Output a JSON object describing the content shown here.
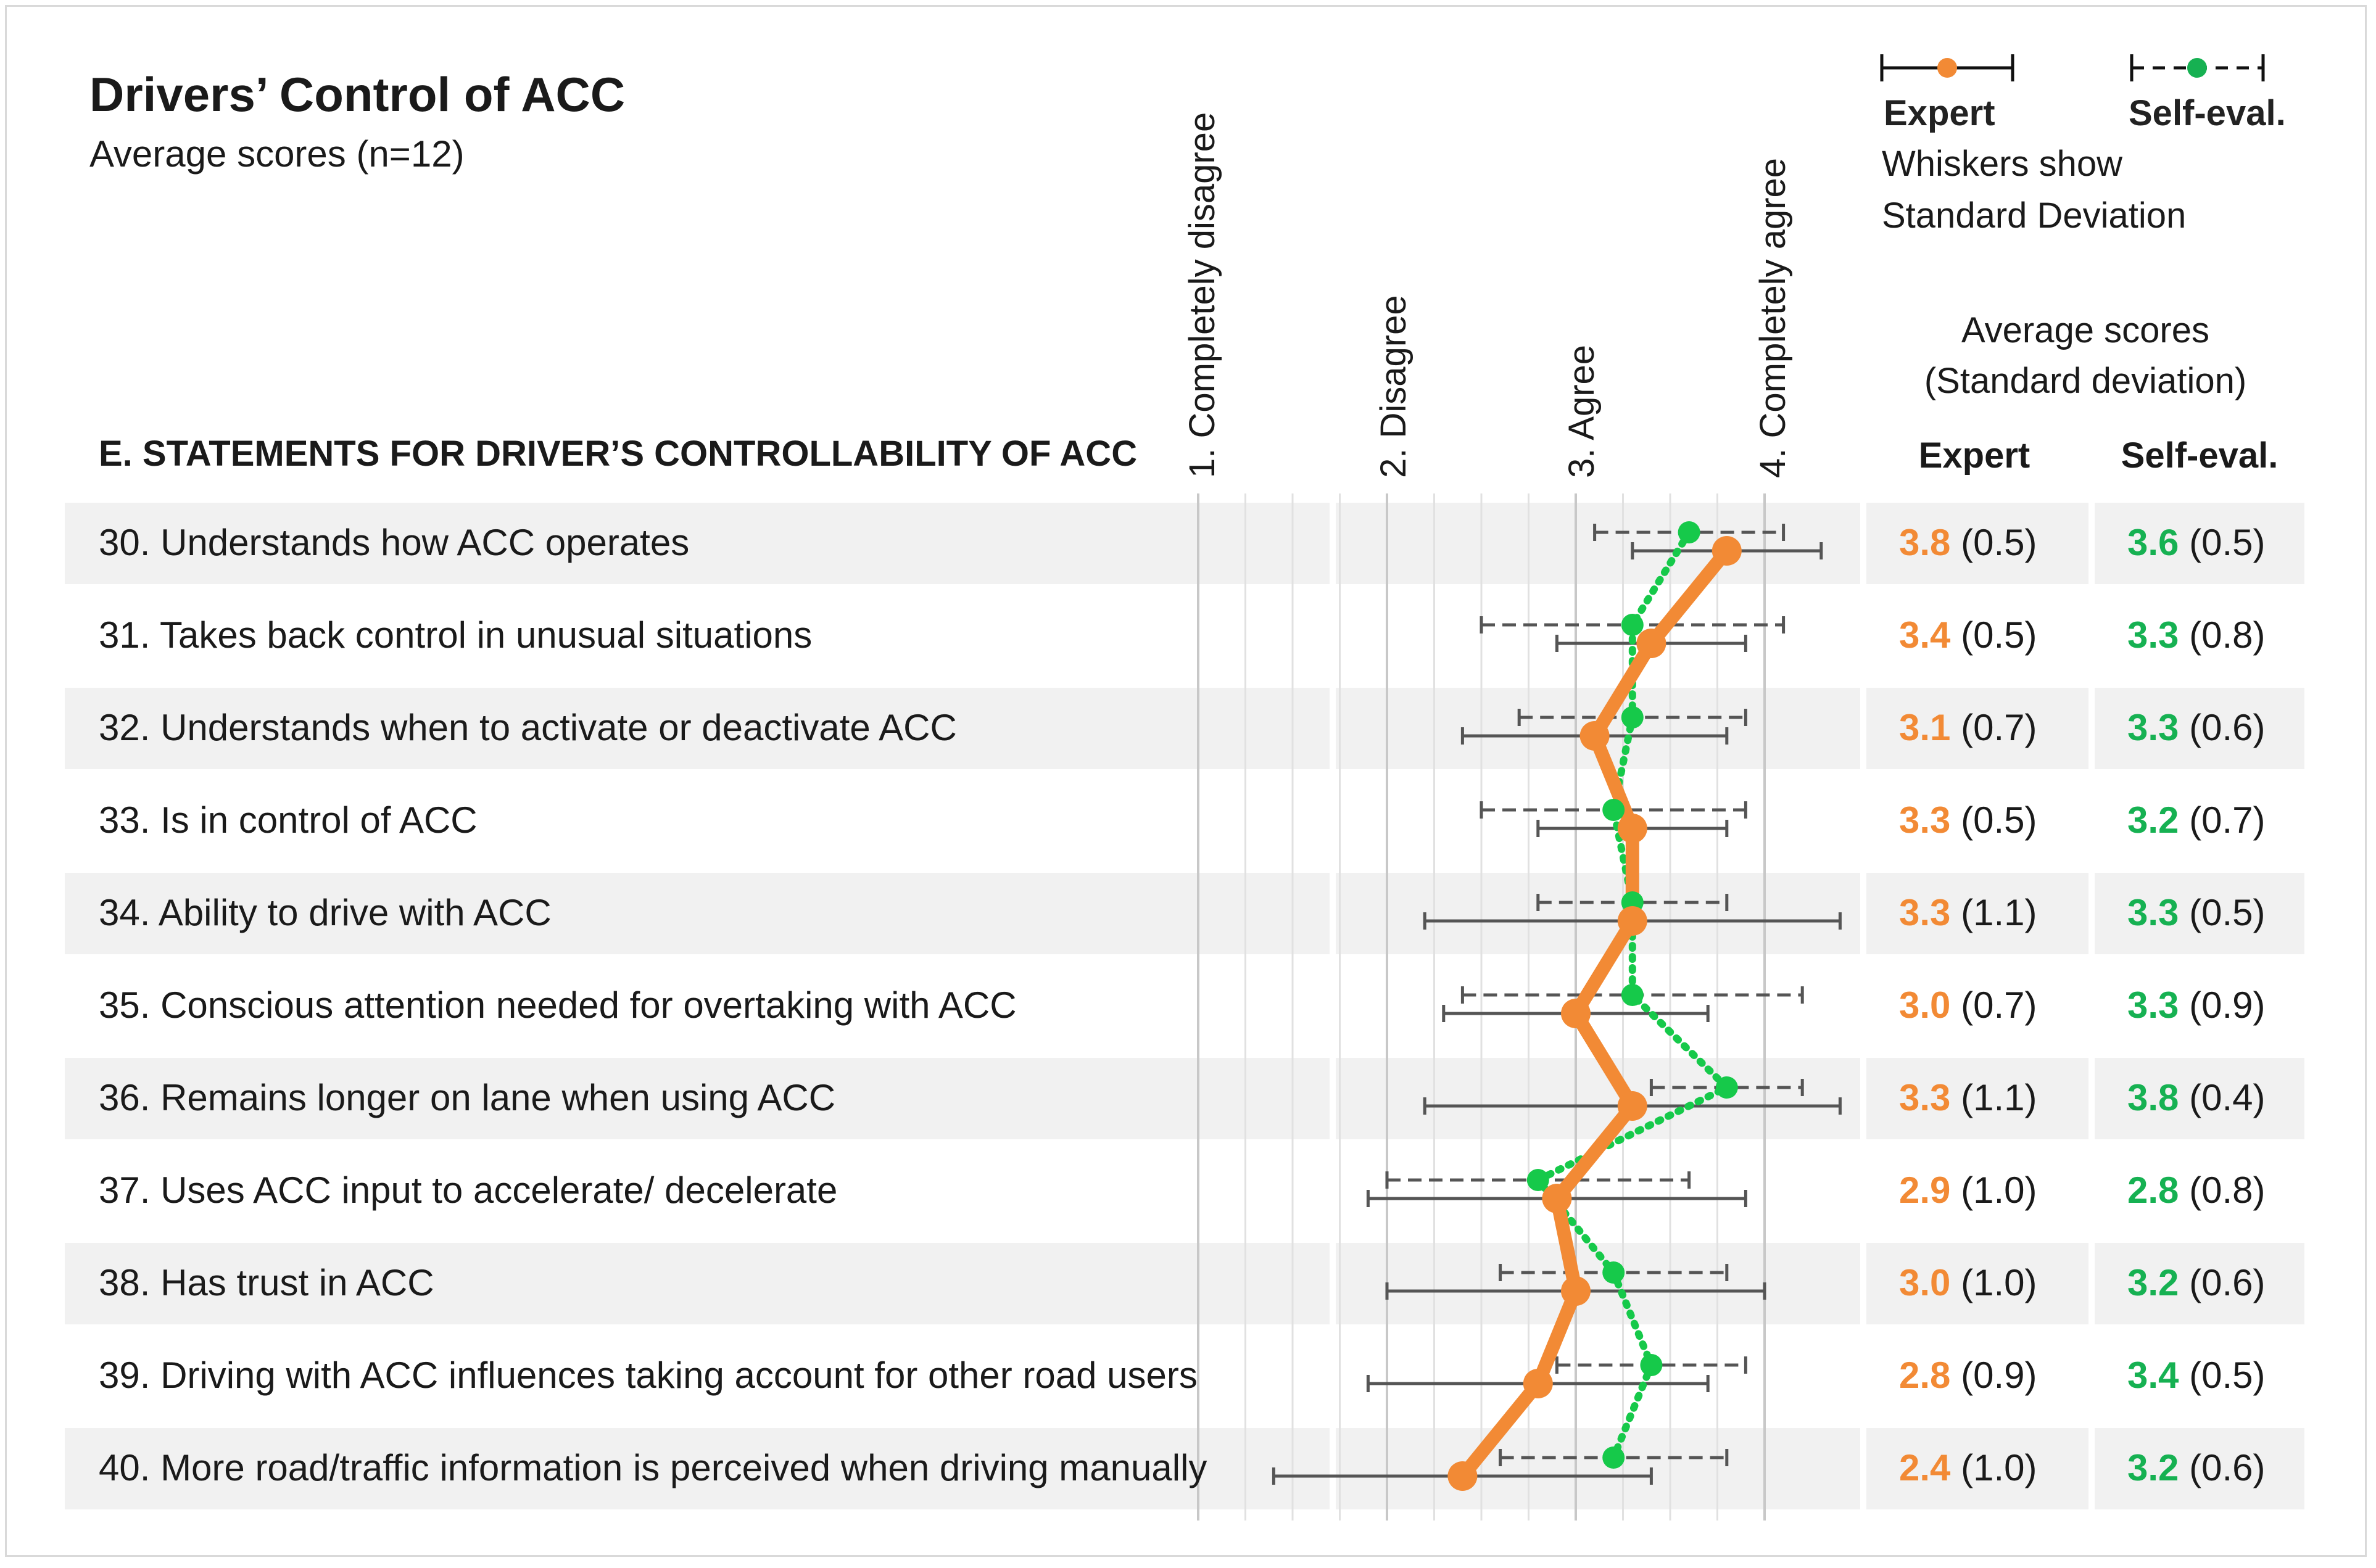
{
  "title": "Drivers’ Control of ACC",
  "subtitle": "Average scores (n=12)",
  "section_heading": "E. STATEMENTS FOR DRIVER’S CONTROLLABILITY OF ACC",
  "colors": {
    "expert": "#f28a35",
    "self": "#16c94a",
    "band": "#f1f1f1",
    "whisker": "#555555"
  },
  "legend": {
    "expert_label": "Expert",
    "self_label": "Self-eval.",
    "note_line1": "Whiskers show",
    "note_line2": "Standard Deviation"
  },
  "table_header": {
    "avg_line1": "Average scores",
    "avg_line2": "(Standard deviation)",
    "expert_col": "Expert",
    "self_col": "Self-eval."
  },
  "chart_data": {
    "type": "line",
    "orientation": "horizontal",
    "x_scale_labels": [
      "1. Completely disagree",
      "2. Disagree",
      "3. Agree",
      "4. Completely agree"
    ],
    "xlim": [
      1,
      4
    ],
    "error_bars": "standard deviation",
    "series_names": [
      "Expert",
      "Self-eval."
    ],
    "rows": [
      {
        "label": "30. Understands how ACC operates",
        "expert_mean": 3.8,
        "expert_sd": 0.5,
        "self_mean": 3.6,
        "self_sd": 0.5,
        "expert_text": "3.8",
        "expert_sd_text": "(0.5)",
        "self_text": "3.6",
        "self_sd_text": "(0.5)"
      },
      {
        "label": "31. Takes back control in unusual situations",
        "expert_mean": 3.4,
        "expert_sd": 0.5,
        "self_mean": 3.3,
        "self_sd": 0.8,
        "expert_text": "3.4",
        "expert_sd_text": "(0.5)",
        "self_text": "3.3",
        "self_sd_text": "(0.8)"
      },
      {
        "label": "32. Understands when to activate or deactivate ACC",
        "expert_mean": 3.1,
        "expert_sd": 0.7,
        "self_mean": 3.3,
        "self_sd": 0.6,
        "expert_text": "3.1",
        "expert_sd_text": "(0.7)",
        "self_text": "3.3",
        "self_sd_text": "(0.6)"
      },
      {
        "label": "33. Is in control of ACC",
        "expert_mean": 3.3,
        "expert_sd": 0.5,
        "self_mean": 3.2,
        "self_sd": 0.7,
        "expert_text": "3.3",
        "expert_sd_text": "(0.5)",
        "self_text": "3.2",
        "self_sd_text": "(0.7)"
      },
      {
        "label": "34. Ability to drive with ACC",
        "expert_mean": 3.3,
        "expert_sd": 1.1,
        "self_mean": 3.3,
        "self_sd": 0.5,
        "expert_text": "3.3",
        "expert_sd_text": "(1.1)",
        "self_text": "3.3",
        "self_sd_text": "(0.5)"
      },
      {
        "label": "35. Conscious attention needed for overtaking with ACC",
        "expert_mean": 3.0,
        "expert_sd": 0.7,
        "self_mean": 3.3,
        "self_sd": 0.9,
        "expert_text": "3.0",
        "expert_sd_text": "(0.7)",
        "self_text": "3.3",
        "self_sd_text": "(0.9)"
      },
      {
        "label": "36. Remains longer on lane when using ACC",
        "expert_mean": 3.3,
        "expert_sd": 1.1,
        "self_mean": 3.8,
        "self_sd": 0.4,
        "expert_text": "3.3",
        "expert_sd_text": "(1.1)",
        "self_text": "3.8",
        "self_sd_text": "(0.4)"
      },
      {
        "label": "37. Uses ACC input to accelerate/ decelerate",
        "expert_mean": 2.9,
        "expert_sd": 1.0,
        "self_mean": 2.8,
        "self_sd": 0.8,
        "expert_text": "2.9",
        "expert_sd_text": "(1.0)",
        "self_text": "2.8",
        "self_sd_text": "(0.8)"
      },
      {
        "label": "38. Has trust in ACC",
        "expert_mean": 3.0,
        "expert_sd": 1.0,
        "self_mean": 3.2,
        "self_sd": 0.6,
        "expert_text": "3.0",
        "expert_sd_text": "(1.0)",
        "self_text": "3.2",
        "self_sd_text": "(0.6)"
      },
      {
        "label": "39. Driving with ACC influences taking account for other road users",
        "expert_mean": 2.8,
        "expert_sd": 0.9,
        "self_mean": 3.4,
        "self_sd": 0.5,
        "expert_text": "2.8",
        "expert_sd_text": "(0.9)",
        "self_text": "3.4",
        "self_sd_text": "(0.5)"
      },
      {
        "label": "40. More road/traffic information is perceived when driving manually",
        "expert_mean": 2.4,
        "expert_sd": 1.0,
        "self_mean": 3.2,
        "self_sd": 0.6,
        "expert_text": "2.4",
        "expert_sd_text": "(1.0)",
        "self_text": "3.2",
        "self_sd_text": "(0.6)"
      }
    ]
  }
}
